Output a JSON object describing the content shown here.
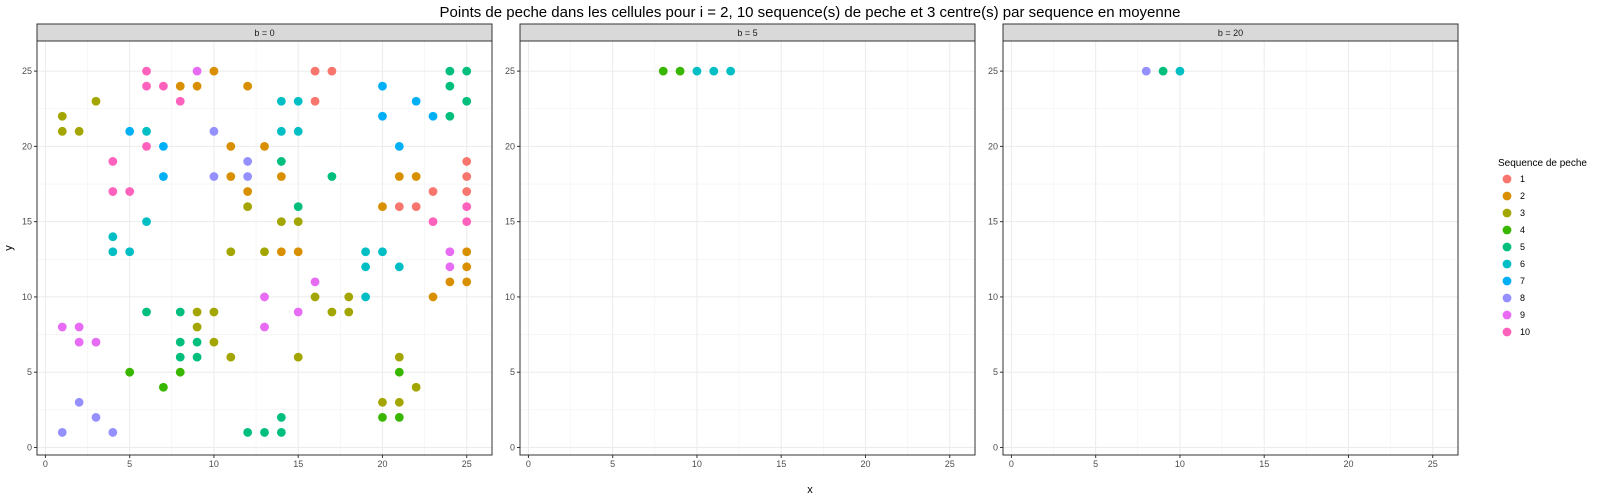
{
  "chart_data": {
    "type": "scatter",
    "title": "Points de peche dans les cellules pour i = 2, 10 sequence(s) de peche et 3 centre(s) par sequence en moyenne",
    "xlabel": "x",
    "ylabel": "y",
    "xlim": [
      -0.5,
      26.5
    ],
    "ylim": [
      -0.5,
      27
    ],
    "x_ticks": [
      0,
      5,
      10,
      15,
      20,
      25
    ],
    "y_ticks": [
      0,
      5,
      10,
      15,
      20,
      25
    ],
    "grid": true,
    "legend": {
      "title": "Sequence de peche",
      "position": "right",
      "entries": [
        {
          "label": "1",
          "color": "#F8766D"
        },
        {
          "label": "2",
          "color": "#D89000"
        },
        {
          "label": "3",
          "color": "#A3A500"
        },
        {
          "label": "4",
          "color": "#39B600"
        },
        {
          "label": "5",
          "color": "#00BF7D"
        },
        {
          "label": "6",
          "color": "#00BFC4"
        },
        {
          "label": "7",
          "color": "#00B0F6"
        },
        {
          "label": "8",
          "color": "#9590FF"
        },
        {
          "label": "9",
          "color": "#E76BF3"
        },
        {
          "label": "10",
          "color": "#FF62BC"
        }
      ]
    },
    "panels": [
      {
        "label": "b = 0",
        "points": [
          {
            "x": 16,
            "y": 25,
            "s": "1"
          },
          {
            "x": 17,
            "y": 25,
            "s": "1"
          },
          {
            "x": 16,
            "y": 23,
            "s": "1"
          },
          {
            "x": 25,
            "y": 19,
            "s": "1"
          },
          {
            "x": 25,
            "y": 18,
            "s": "1"
          },
          {
            "x": 23,
            "y": 17,
            "s": "1"
          },
          {
            "x": 25,
            "y": 17,
            "s": "1"
          },
          {
            "x": 21,
            "y": 16,
            "s": "1"
          },
          {
            "x": 22,
            "y": 16,
            "s": "1"
          },
          {
            "x": 10,
            "y": 25,
            "s": "2"
          },
          {
            "x": 8,
            "y": 24,
            "s": "2"
          },
          {
            "x": 9,
            "y": 24,
            "s": "2"
          },
          {
            "x": 12,
            "y": 24,
            "s": "2"
          },
          {
            "x": 11,
            "y": 20,
            "s": "2"
          },
          {
            "x": 13,
            "y": 20,
            "s": "2"
          },
          {
            "x": 11,
            "y": 18,
            "s": "2"
          },
          {
            "x": 14,
            "y": 18,
            "s": "2"
          },
          {
            "x": 21,
            "y": 18,
            "s": "2"
          },
          {
            "x": 22,
            "y": 18,
            "s": "2"
          },
          {
            "x": 12,
            "y": 17,
            "s": "2"
          },
          {
            "x": 20,
            "y": 16,
            "s": "2"
          },
          {
            "x": 14,
            "y": 13,
            "s": "2"
          },
          {
            "x": 15,
            "y": 13,
            "s": "2"
          },
          {
            "x": 25,
            "y": 13,
            "s": "2"
          },
          {
            "x": 25,
            "y": 12,
            "s": "2"
          },
          {
            "x": 24,
            "y": 11,
            "s": "2"
          },
          {
            "x": 25,
            "y": 11,
            "s": "2"
          },
          {
            "x": 23,
            "y": 10,
            "s": "2"
          },
          {
            "x": 3,
            "y": 23,
            "s": "3"
          },
          {
            "x": 1,
            "y": 22,
            "s": "3"
          },
          {
            "x": 1,
            "y": 21,
            "s": "3"
          },
          {
            "x": 2,
            "y": 21,
            "s": "3"
          },
          {
            "x": 12,
            "y": 16,
            "s": "3"
          },
          {
            "x": 14,
            "y": 15,
            "s": "3"
          },
          {
            "x": 15,
            "y": 15,
            "s": "3"
          },
          {
            "x": 11,
            "y": 13,
            "s": "3"
          },
          {
            "x": 13,
            "y": 13,
            "s": "3"
          },
          {
            "x": 16,
            "y": 10,
            "s": "3"
          },
          {
            "x": 18,
            "y": 10,
            "s": "3"
          },
          {
            "x": 17,
            "y": 9,
            "s": "3"
          },
          {
            "x": 18,
            "y": 9,
            "s": "3"
          },
          {
            "x": 9,
            "y": 9,
            "s": "3"
          },
          {
            "x": 10,
            "y": 9,
            "s": "3"
          },
          {
            "x": 9,
            "y": 8,
            "s": "3"
          },
          {
            "x": 10,
            "y": 7,
            "s": "3"
          },
          {
            "x": 11,
            "y": 6,
            "s": "3"
          },
          {
            "x": 15,
            "y": 6,
            "s": "3"
          },
          {
            "x": 21,
            "y": 6,
            "s": "3"
          },
          {
            "x": 22,
            "y": 4,
            "s": "3"
          },
          {
            "x": 20,
            "y": 3,
            "s": "3"
          },
          {
            "x": 21,
            "y": 3,
            "s": "3"
          },
          {
            "x": 5,
            "y": 5,
            "s": "4"
          },
          {
            "x": 8,
            "y": 5,
            "s": "4"
          },
          {
            "x": 7,
            "y": 4,
            "s": "4"
          },
          {
            "x": 21,
            "y": 5,
            "s": "4"
          },
          {
            "x": 20,
            "y": 2,
            "s": "4"
          },
          {
            "x": 21,
            "y": 2,
            "s": "4"
          },
          {
            "x": 24,
            "y": 25,
            "s": "5"
          },
          {
            "x": 25,
            "y": 25,
            "s": "5"
          },
          {
            "x": 24,
            "y": 24,
            "s": "5"
          },
          {
            "x": 25,
            "y": 23,
            "s": "5"
          },
          {
            "x": 24,
            "y": 22,
            "s": "5"
          },
          {
            "x": 14,
            "y": 19,
            "s": "5"
          },
          {
            "x": 17,
            "y": 18,
            "s": "5"
          },
          {
            "x": 15,
            "y": 16,
            "s": "5"
          },
          {
            "x": 6,
            "y": 9,
            "s": "5"
          },
          {
            "x": 8,
            "y": 9,
            "s": "5"
          },
          {
            "x": 8,
            "y": 7,
            "s": "5"
          },
          {
            "x": 9,
            "y": 7,
            "s": "5"
          },
          {
            "x": 8,
            "y": 6,
            "s": "5"
          },
          {
            "x": 9,
            "y": 6,
            "s": "5"
          },
          {
            "x": 12,
            "y": 1,
            "s": "5"
          },
          {
            "x": 13,
            "y": 1,
            "s": "5"
          },
          {
            "x": 14,
            "y": 1,
            "s": "5"
          },
          {
            "x": 14,
            "y": 2,
            "s": "5"
          },
          {
            "x": 14,
            "y": 23,
            "s": "6"
          },
          {
            "x": 15,
            "y": 23,
            "s": "6"
          },
          {
            "x": 6,
            "y": 21,
            "s": "6"
          },
          {
            "x": 14,
            "y": 21,
            "s": "6"
          },
          {
            "x": 15,
            "y": 21,
            "s": "6"
          },
          {
            "x": 6,
            "y": 15,
            "s": "6"
          },
          {
            "x": 4,
            "y": 14,
            "s": "6"
          },
          {
            "x": 4,
            "y": 13,
            "s": "6"
          },
          {
            "x": 5,
            "y": 13,
            "s": "6"
          },
          {
            "x": 19,
            "y": 13,
            "s": "6"
          },
          {
            "x": 20,
            "y": 13,
            "s": "6"
          },
          {
            "x": 19,
            "y": 12,
            "s": "6"
          },
          {
            "x": 21,
            "y": 12,
            "s": "6"
          },
          {
            "x": 19,
            "y": 10,
            "s": "6"
          },
          {
            "x": 20,
            "y": 24,
            "s": "7"
          },
          {
            "x": 22,
            "y": 23,
            "s": "7"
          },
          {
            "x": 20,
            "y": 22,
            "s": "7"
          },
          {
            "x": 23,
            "y": 22,
            "s": "7"
          },
          {
            "x": 5,
            "y": 21,
            "s": "7"
          },
          {
            "x": 7,
            "y": 20,
            "s": "7"
          },
          {
            "x": 21,
            "y": 20,
            "s": "7"
          },
          {
            "x": 7,
            "y": 18,
            "s": "7"
          },
          {
            "x": 10,
            "y": 21,
            "s": "8"
          },
          {
            "x": 12,
            "y": 19,
            "s": "8"
          },
          {
            "x": 10,
            "y": 18,
            "s": "8"
          },
          {
            "x": 12,
            "y": 18,
            "s": "8"
          },
          {
            "x": 2,
            "y": 3,
            "s": "8"
          },
          {
            "x": 3,
            "y": 2,
            "s": "8"
          },
          {
            "x": 1,
            "y": 1,
            "s": "8"
          },
          {
            "x": 4,
            "y": 1,
            "s": "8"
          },
          {
            "x": 9,
            "y": 25,
            "s": "9"
          },
          {
            "x": 16,
            "y": 11,
            "s": "9"
          },
          {
            "x": 13,
            "y": 10,
            "s": "9"
          },
          {
            "x": 15,
            "y": 9,
            "s": "9"
          },
          {
            "x": 1,
            "y": 8,
            "s": "9"
          },
          {
            "x": 2,
            "y": 8,
            "s": "9"
          },
          {
            "x": 13,
            "y": 8,
            "s": "9"
          },
          {
            "x": 2,
            "y": 7,
            "s": "9"
          },
          {
            "x": 3,
            "y": 7,
            "s": "9"
          },
          {
            "x": 24,
            "y": 13,
            "s": "9"
          },
          {
            "x": 24,
            "y": 12,
            "s": "9"
          },
          {
            "x": 6,
            "y": 25,
            "s": "10"
          },
          {
            "x": 6,
            "y": 24,
            "s": "10"
          },
          {
            "x": 7,
            "y": 24,
            "s": "10"
          },
          {
            "x": 8,
            "y": 23,
            "s": "10"
          },
          {
            "x": 6,
            "y": 20,
            "s": "10"
          },
          {
            "x": 4,
            "y": 19,
            "s": "10"
          },
          {
            "x": 4,
            "y": 17,
            "s": "10"
          },
          {
            "x": 5,
            "y": 17,
            "s": "10"
          },
          {
            "x": 25,
            "y": 16,
            "s": "10"
          },
          {
            "x": 23,
            "y": 15,
            "s": "10"
          },
          {
            "x": 25,
            "y": 15,
            "s": "10"
          }
        ]
      },
      {
        "label": "b = 5",
        "points": [
          {
            "x": 8,
            "y": 25,
            "s": "4"
          },
          {
            "x": 9,
            "y": 25,
            "s": "4"
          },
          {
            "x": 10,
            "y": 25,
            "s": "6"
          },
          {
            "x": 11,
            "y": 25,
            "s": "6"
          },
          {
            "x": 12,
            "y": 25,
            "s": "6"
          }
        ]
      },
      {
        "label": "b = 20",
        "points": [
          {
            "x": 8,
            "y": 25,
            "s": "8"
          },
          {
            "x": 9,
            "y": 25,
            "s": "5"
          },
          {
            "x": 10,
            "y": 25,
            "s": "6"
          }
        ]
      }
    ]
  }
}
